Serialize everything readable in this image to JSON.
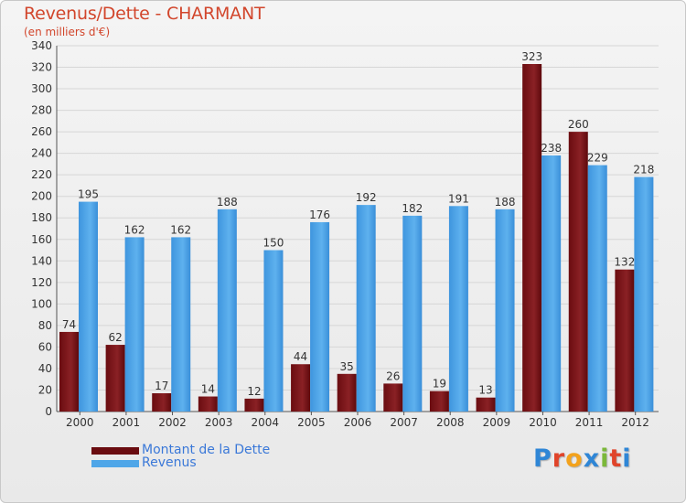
{
  "title": "Revenus/Dette - CHARMANT",
  "subtitle": "(en milliers d'€)",
  "chart_data": {
    "type": "bar",
    "categories": [
      "2000",
      "2001",
      "2002",
      "2003",
      "2004",
      "2005",
      "2006",
      "2007",
      "2008",
      "2009",
      "2010",
      "2011",
      "2012"
    ],
    "series": [
      {
        "name": "Montant de la Dette",
        "color": "#7a1418",
        "values": [
          74,
          62,
          17,
          14,
          12,
          44,
          35,
          26,
          19,
          13,
          323,
          260,
          132
        ]
      },
      {
        "name": "Revenus",
        "color": "#4fa6e8",
        "values": [
          195,
          162,
          162,
          188,
          150,
          176,
          192,
          182,
          191,
          188,
          238,
          229,
          218
        ]
      }
    ],
    "ylim": [
      0,
      340
    ],
    "yticks": [
      0,
      20,
      40,
      60,
      80,
      100,
      120,
      140,
      160,
      180,
      200,
      220,
      240,
      260,
      280,
      300,
      320,
      340
    ],
    "grid": true,
    "legend_position": "bottom-left"
  },
  "logo": {
    "text": "Proxiti",
    "colors": [
      "#2f86d6",
      "#e0442a",
      "#f3a21c",
      "#2f86d6",
      "#7bb83a",
      "#e0442a",
      "#2f86d6"
    ]
  }
}
